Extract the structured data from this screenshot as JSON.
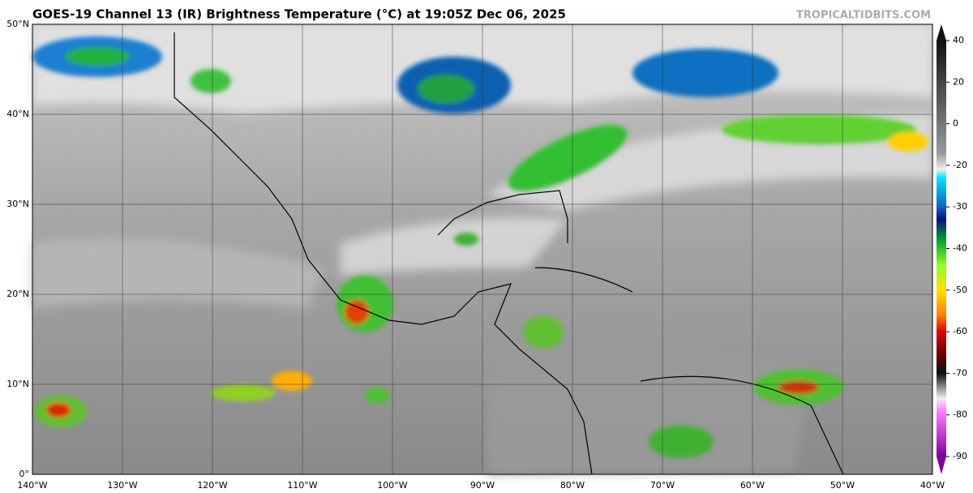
{
  "header": {
    "title": "GOES-19 Channel 13 (IR) Brightness Temperature (°C) at 19:05Z Dec 06, 2025",
    "credit": "TROPICALTIDBITS.COM"
  },
  "map": {
    "lat_labels": [
      "50°N",
      "40°N",
      "30°N",
      "20°N",
      "10°N",
      "0°"
    ],
    "lon_labels": [
      "140°W",
      "130°W",
      "120°W",
      "110°W",
      "100°W",
      "90°W",
      "80°W",
      "70°W",
      "60°W",
      "50°W",
      "40°W"
    ]
  },
  "colorbar": {
    "ticks": [
      40,
      20,
      0,
      -20,
      -30,
      -40,
      -50,
      -60,
      -70,
      -80,
      -90
    ]
  }
}
